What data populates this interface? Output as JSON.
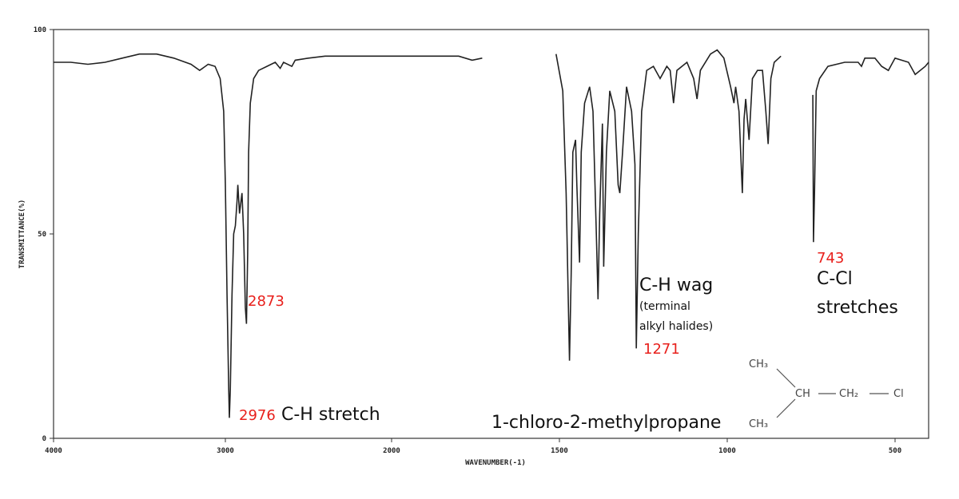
{
  "chart_data": {
    "type": "line",
    "xlabel": "WAVENUMBER(-1)",
    "ylabel": "TRANSMITTANCE(%)",
    "xlim": [
      4000,
      450
    ],
    "ylim": [
      0,
      100
    ],
    "xticks": [
      4000,
      3000,
      2000,
      1500,
      1000,
      500
    ],
    "yticks": [
      0,
      50,
      100
    ],
    "x": [
      4000,
      3900,
      3800,
      3700,
      3600,
      3500,
      3400,
      3300,
      3200,
      3150,
      3100,
      3060,
      3030,
      3010,
      3000,
      2990,
      2980,
      2976,
      2970,
      2960,
      2950,
      2940,
      2930,
      2925,
      2915,
      2900,
      2890,
      2880,
      2873,
      2866,
      2860,
      2850,
      2830,
      2800,
      2750,
      2700,
      2670,
      2650,
      2600,
      2580,
      2500,
      2400,
      2200,
      2000,
      1900,
      1800,
      1760,
      1730,
      1620,
      1510,
      1490,
      1480,
      1470,
      1465,
      1460,
      1452,
      1448,
      1440,
      1435,
      1425,
      1410,
      1400,
      1390,
      1385,
      1380,
      1372,
      1368,
      1360,
      1350,
      1335,
      1325,
      1320,
      1312,
      1300,
      1285,
      1275,
      1271,
      1265,
      1255,
      1240,
      1220,
      1200,
      1180,
      1170,
      1160,
      1150,
      1120,
      1100,
      1090,
      1080,
      1050,
      1030,
      1010,
      990,
      980,
      975,
      965,
      955,
      950,
      945,
      935,
      925,
      910,
      895,
      885,
      878,
      870,
      860,
      840,
      790,
      745,
      743,
      740,
      735,
      725,
      700,
      650,
      610,
      600,
      590,
      560,
      540,
      520,
      500,
      480,
      470,
      455,
      450
    ],
    "series": [
      {
        "name": "1-chloro-2-methylpropane",
        "color": "#222222",
        "values": [
          92,
          92,
          91.5,
          92,
          93,
          94,
          94,
          93,
          91.5,
          90,
          91.5,
          91,
          88,
          80,
          62,
          35,
          12,
          5,
          12,
          35,
          50,
          52,
          58,
          62,
          55,
          60,
          50,
          32,
          28,
          45,
          70,
          82,
          88,
          90,
          91,
          92,
          90.5,
          92,
          91,
          92.5,
          93,
          93.5,
          93.5,
          93.5,
          93.5,
          93.5,
          92.5,
          93,
          null,
          94,
          85,
          60,
          19,
          40,
          70,
          73,
          62,
          43,
          70,
          82,
          86,
          80,
          50,
          34,
          55,
          77,
          42,
          70,
          85,
          80,
          62,
          60,
          70,
          86,
          80,
          67,
          22,
          50,
          80,
          90,
          91,
          88,
          91,
          90,
          82,
          90,
          92,
          88,
          83,
          90,
          94,
          95,
          93,
          86,
          82,
          86,
          80,
          60,
          78,
          83,
          73,
          88,
          90,
          90,
          80,
          72,
          88,
          92,
          93.5,
          null,
          84,
          48,
          60,
          85,
          88,
          91,
          92,
          92,
          91,
          93,
          93,
          91,
          90,
          93,
          92,
          89,
          91,
          92
        ]
      }
    ],
    "annotations": [
      {
        "text": "2873",
        "color": "#e8201c"
      },
      {
        "text": "2976",
        "color": "#e8201c"
      },
      {
        "text": "C-H stretch",
        "color": "#111111"
      },
      {
        "text": "C-H  wag",
        "color": "#111111"
      },
      {
        "text": "(terminal",
        "color": "#111111"
      },
      {
        "text": "alkyl halides)",
        "color": "#111111"
      },
      {
        "text": "1271",
        "color": "#e8201c"
      },
      {
        "text": "743",
        "color": "#e8201c"
      },
      {
        "text": "C-Cl",
        "color": "#111111"
      },
      {
        "text": "stretches",
        "color": "#111111"
      },
      {
        "text": "1-chloro-2-methylpropane",
        "color": "#111111"
      }
    ],
    "structure": {
      "top": "CH₃",
      "center": "CH",
      "ch2": "CH₂",
      "cl": "Cl",
      "bottom": "CH₃"
    }
  }
}
